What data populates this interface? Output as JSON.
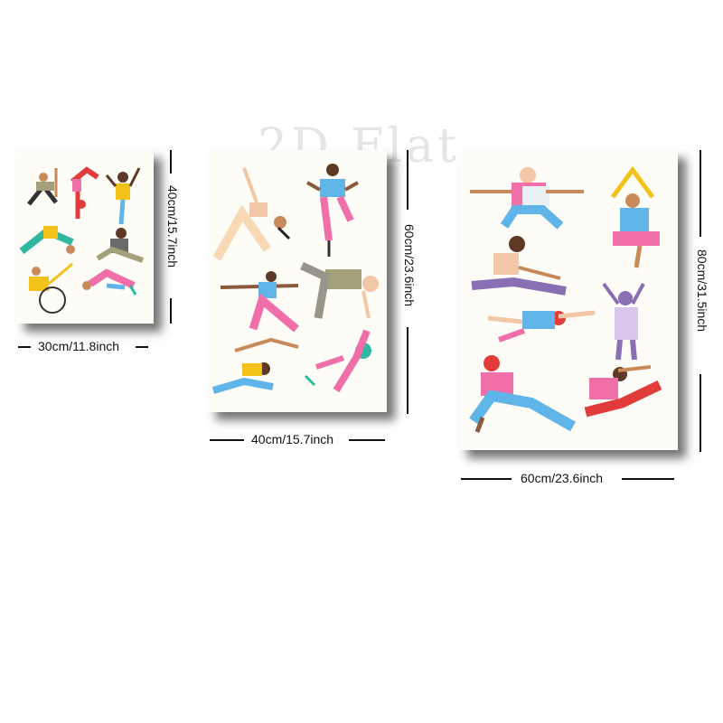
{
  "watermark": "2D Flat",
  "panels": [
    {
      "width_label": "30cm/11.8inch",
      "height_label": "40cm/15.7inch"
    },
    {
      "width_label": "40cm/15.7inch",
      "height_label": "60cm/23.6inch"
    },
    {
      "width_label": "60cm/23.6inch",
      "height_label": "80cm/31.5inch"
    }
  ],
  "colors": {
    "poster_bg": "#fdfcf6",
    "skin_tones": [
      "#f1c7a8",
      "#c98a5b",
      "#8a5a3c",
      "#5e3a26"
    ],
    "accents": [
      "#f06fa8",
      "#5fb4e8",
      "#e23b3b",
      "#f3c21a",
      "#2fb7a0",
      "#8a6fb5"
    ]
  }
}
